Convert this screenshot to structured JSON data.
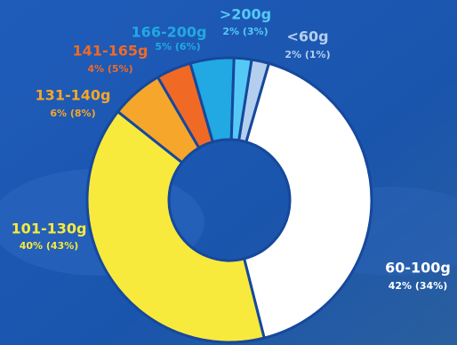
{
  "chart_data": {
    "type": "donut",
    "categories": [
      "<60g",
      "60-100g",
      "101-130g",
      "131-140g",
      "141-165g",
      "166-200g",
      ">200g"
    ],
    "values": [
      2,
      42,
      40,
      6,
      4,
      5,
      2
    ],
    "value_labels": [
      "2% (1%)",
      "42% (34%)",
      "40% (43%)",
      "6% (8%)",
      "4% (5%)",
      "5% (6%)",
      "2% (3%)"
    ],
    "colors": [
      "#b4cfee",
      "#ffffff",
      "#f8ea3c",
      "#f6a62a",
      "#f06a26",
      "#22a8e2",
      "#55c9f6"
    ]
  }
}
